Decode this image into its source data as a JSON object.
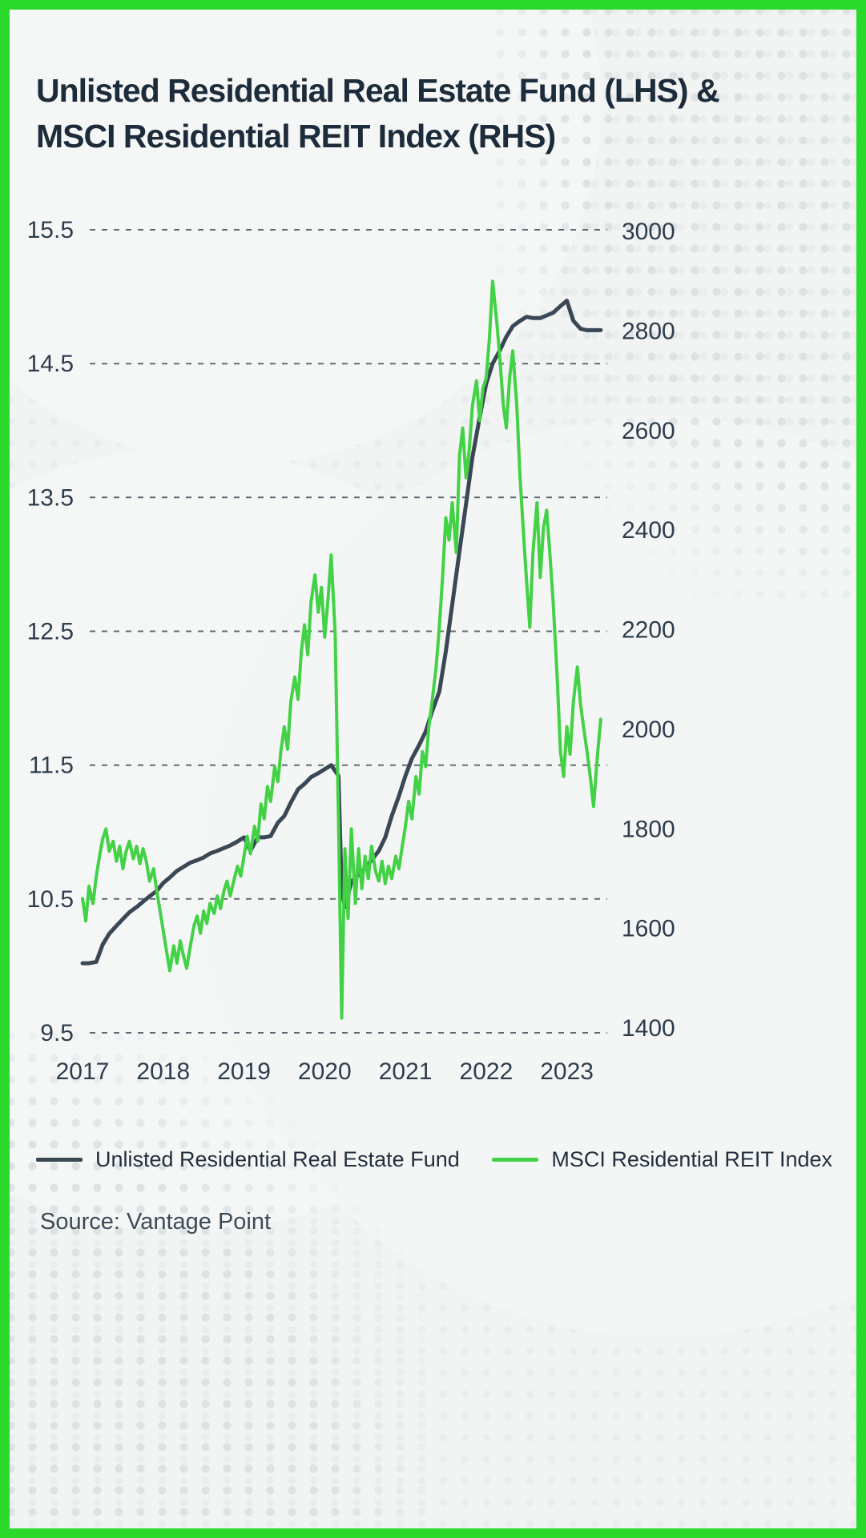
{
  "page": {
    "title_line1": "Unlisted Residential Real Estate Fund (LHS) &",
    "title_line2": "MSCI Residential REIT Index (RHS)",
    "source": "Source: Vantage Point"
  },
  "legend": {
    "items": [
      {
        "label": "Unlisted Residential Real Estate Fund",
        "color": "#3a4754"
      },
      {
        "label": "MSCI Residential REIT Index",
        "color": "#43d146"
      }
    ]
  },
  "colors": {
    "frame_green": "#2bd92b",
    "line_dark": "#3a4754",
    "line_green": "#43d146",
    "grid": "#46535e",
    "axis_text": "#2e3d4c"
  },
  "chart_data": {
    "type": "line",
    "title": "Unlisted Residential Real Estate Fund (LHS) & MSCI Residential REIT Index (RHS)",
    "grid": "dashed-horizontal",
    "legend_position": "bottom",
    "x_axis": {
      "min": 2016.95,
      "max": 2023.5,
      "tick_values": [
        2017,
        2018,
        2019,
        2020,
        2021,
        2022,
        2023
      ],
      "tick_labels": [
        "2017",
        "2018",
        "2019",
        "2020",
        "2021",
        "2022",
        "2023"
      ]
    },
    "left_axis": {
      "min": 9.5,
      "max": 15.5,
      "ticks": [
        15.5,
        14.5,
        13.5,
        12.5,
        11.5,
        10.5,
        9.5
      ]
    },
    "right_axis": {
      "min": 1400,
      "max": 3000,
      "ticks": [
        3000,
        2800,
        2600,
        2400,
        2200,
        2000,
        1800,
        1600,
        1400
      ]
    },
    "series": [
      {
        "id": "unlisted-fund",
        "name": "Unlisted Residential Real Estate Fund",
        "axis": "left",
        "color": "#3a4754",
        "points": [
          [
            2017.0,
            10.02
          ],
          [
            2017.08,
            10.02
          ],
          [
            2017.17,
            10.03
          ],
          [
            2017.25,
            10.16
          ],
          [
            2017.33,
            10.24
          ],
          [
            2017.42,
            10.3
          ],
          [
            2017.5,
            10.35
          ],
          [
            2017.58,
            10.4
          ],
          [
            2017.67,
            10.44
          ],
          [
            2017.75,
            10.48
          ],
          [
            2017.83,
            10.52
          ],
          [
            2017.92,
            10.56
          ],
          [
            2018.0,
            10.62
          ],
          [
            2018.08,
            10.66
          ],
          [
            2018.17,
            10.71
          ],
          [
            2018.25,
            10.74
          ],
          [
            2018.33,
            10.77
          ],
          [
            2018.42,
            10.79
          ],
          [
            2018.5,
            10.81
          ],
          [
            2018.58,
            10.84
          ],
          [
            2018.67,
            10.86
          ],
          [
            2018.75,
            10.88
          ],
          [
            2018.83,
            10.9
          ],
          [
            2018.92,
            10.93
          ],
          [
            2019.0,
            10.96
          ],
          [
            2019.08,
            10.86
          ],
          [
            2019.17,
            10.96
          ],
          [
            2019.25,
            10.96
          ],
          [
            2019.33,
            10.97
          ],
          [
            2019.42,
            11.07
          ],
          [
            2019.5,
            11.12
          ],
          [
            2019.58,
            11.22
          ],
          [
            2019.67,
            11.32
          ],
          [
            2019.75,
            11.36
          ],
          [
            2019.83,
            11.41
          ],
          [
            2019.92,
            11.44
          ],
          [
            2020.0,
            11.47
          ],
          [
            2020.08,
            11.5
          ],
          [
            2020.17,
            11.42
          ],
          [
            2020.21,
            10.56
          ],
          [
            2020.25,
            10.44
          ],
          [
            2020.33,
            10.63
          ],
          [
            2020.42,
            10.68
          ],
          [
            2020.5,
            10.73
          ],
          [
            2020.58,
            10.79
          ],
          [
            2020.67,
            10.86
          ],
          [
            2020.75,
            10.96
          ],
          [
            2020.83,
            11.12
          ],
          [
            2020.92,
            11.27
          ],
          [
            2021.0,
            11.42
          ],
          [
            2021.08,
            11.55
          ],
          [
            2021.17,
            11.65
          ],
          [
            2021.25,
            11.75
          ],
          [
            2021.33,
            11.9
          ],
          [
            2021.42,
            12.05
          ],
          [
            2021.5,
            12.35
          ],
          [
            2021.58,
            12.7
          ],
          [
            2021.67,
            13.1
          ],
          [
            2021.75,
            13.45
          ],
          [
            2021.83,
            13.8
          ],
          [
            2021.92,
            14.1
          ],
          [
            2022.0,
            14.35
          ],
          [
            2022.08,
            14.5
          ],
          [
            2022.17,
            14.6
          ],
          [
            2022.25,
            14.7
          ],
          [
            2022.33,
            14.78
          ],
          [
            2022.42,
            14.82
          ],
          [
            2022.5,
            14.85
          ],
          [
            2022.58,
            14.84
          ],
          [
            2022.67,
            14.84
          ],
          [
            2022.75,
            14.86
          ],
          [
            2022.83,
            14.88
          ],
          [
            2022.92,
            14.93
          ],
          [
            2023.0,
            14.97
          ],
          [
            2023.08,
            14.82
          ],
          [
            2023.17,
            14.76
          ],
          [
            2023.25,
            14.75
          ],
          [
            2023.33,
            14.75
          ],
          [
            2023.42,
            14.75
          ]
        ]
      },
      {
        "id": "msci-reit",
        "name": "MSCI Residential REIT Index",
        "axis": "right",
        "color": "#43d146",
        "points": [
          [
            2017.0,
            1660
          ],
          [
            2017.04,
            1615
          ],
          [
            2017.08,
            1685
          ],
          [
            2017.13,
            1650
          ],
          [
            2017.17,
            1705
          ],
          [
            2017.21,
            1745
          ],
          [
            2017.25,
            1780
          ],
          [
            2017.29,
            1800
          ],
          [
            2017.33,
            1755
          ],
          [
            2017.38,
            1775
          ],
          [
            2017.42,
            1735
          ],
          [
            2017.46,
            1765
          ],
          [
            2017.5,
            1720
          ],
          [
            2017.54,
            1755
          ],
          [
            2017.58,
            1775
          ],
          [
            2017.63,
            1740
          ],
          [
            2017.67,
            1765
          ],
          [
            2017.71,
            1730
          ],
          [
            2017.75,
            1760
          ],
          [
            2017.79,
            1735
          ],
          [
            2017.83,
            1695
          ],
          [
            2017.88,
            1720
          ],
          [
            2017.92,
            1675
          ],
          [
            2017.96,
            1635
          ],
          [
            2018.0,
            1595
          ],
          [
            2018.04,
            1555
          ],
          [
            2018.08,
            1515
          ],
          [
            2018.13,
            1565
          ],
          [
            2018.17,
            1530
          ],
          [
            2018.21,
            1575
          ],
          [
            2018.25,
            1545
          ],
          [
            2018.29,
            1520
          ],
          [
            2018.33,
            1560
          ],
          [
            2018.38,
            1605
          ],
          [
            2018.42,
            1625
          ],
          [
            2018.46,
            1590
          ],
          [
            2018.5,
            1635
          ],
          [
            2018.54,
            1610
          ],
          [
            2018.58,
            1650
          ],
          [
            2018.63,
            1630
          ],
          [
            2018.67,
            1665
          ],
          [
            2018.71,
            1640
          ],
          [
            2018.75,
            1675
          ],
          [
            2018.79,
            1695
          ],
          [
            2018.83,
            1665
          ],
          [
            2018.88,
            1700
          ],
          [
            2018.92,
            1725
          ],
          [
            2018.96,
            1705
          ],
          [
            2019.0,
            1745
          ],
          [
            2019.04,
            1785
          ],
          [
            2019.08,
            1750
          ],
          [
            2019.13,
            1805
          ],
          [
            2019.17,
            1775
          ],
          [
            2019.21,
            1850
          ],
          [
            2019.25,
            1820
          ],
          [
            2019.29,
            1885
          ],
          [
            2019.33,
            1855
          ],
          [
            2019.38,
            1925
          ],
          [
            2019.42,
            1895
          ],
          [
            2019.46,
            1960
          ],
          [
            2019.5,
            2005
          ],
          [
            2019.54,
            1960
          ],
          [
            2019.58,
            2055
          ],
          [
            2019.63,
            2105
          ],
          [
            2019.67,
            2060
          ],
          [
            2019.71,
            2155
          ],
          [
            2019.75,
            2210
          ],
          [
            2019.79,
            2150
          ],
          [
            2019.83,
            2255
          ],
          [
            2019.88,
            2310
          ],
          [
            2019.92,
            2235
          ],
          [
            2019.96,
            2285
          ],
          [
            2020.0,
            2185
          ],
          [
            2020.04,
            2260
          ],
          [
            2020.08,
            2350
          ],
          [
            2020.13,
            2190
          ],
          [
            2020.17,
            1820
          ],
          [
            2020.21,
            1420
          ],
          [
            2020.25,
            1760
          ],
          [
            2020.29,
            1620
          ],
          [
            2020.33,
            1800
          ],
          [
            2020.38,
            1650
          ],
          [
            2020.42,
            1760
          ],
          [
            2020.46,
            1680
          ],
          [
            2020.5,
            1745
          ],
          [
            2020.54,
            1700
          ],
          [
            2020.58,
            1765
          ],
          [
            2020.63,
            1715
          ],
          [
            2020.67,
            1695
          ],
          [
            2020.71,
            1735
          ],
          [
            2020.75,
            1690
          ],
          [
            2020.79,
            1725
          ],
          [
            2020.83,
            1700
          ],
          [
            2020.88,
            1745
          ],
          [
            2020.92,
            1720
          ],
          [
            2020.96,
            1765
          ],
          [
            2021.0,
            1805
          ],
          [
            2021.04,
            1855
          ],
          [
            2021.08,
            1820
          ],
          [
            2021.13,
            1905
          ],
          [
            2021.17,
            1870
          ],
          [
            2021.21,
            1955
          ],
          [
            2021.25,
            1925
          ],
          [
            2021.29,
            2005
          ],
          [
            2021.33,
            2055
          ],
          [
            2021.38,
            2125
          ],
          [
            2021.42,
            2205
          ],
          [
            2021.46,
            2305
          ],
          [
            2021.5,
            2425
          ],
          [
            2021.54,
            2380
          ],
          [
            2021.58,
            2455
          ],
          [
            2021.63,
            2355
          ],
          [
            2021.67,
            2550
          ],
          [
            2021.71,
            2605
          ],
          [
            2021.75,
            2505
          ],
          [
            2021.79,
            2560
          ],
          [
            2021.83,
            2650
          ],
          [
            2021.88,
            2700
          ],
          [
            2021.92,
            2620
          ],
          [
            2021.96,
            2685
          ],
          [
            2022.0,
            2705
          ],
          [
            2022.04,
            2785
          ],
          [
            2022.08,
            2900
          ],
          [
            2022.13,
            2820
          ],
          [
            2022.17,
            2745
          ],
          [
            2022.21,
            2655
          ],
          [
            2022.25,
            2605
          ],
          [
            2022.29,
            2705
          ],
          [
            2022.33,
            2760
          ],
          [
            2022.38,
            2650
          ],
          [
            2022.42,
            2505
          ],
          [
            2022.46,
            2400
          ],
          [
            2022.5,
            2300
          ],
          [
            2022.54,
            2205
          ],
          [
            2022.58,
            2355
          ],
          [
            2022.63,
            2455
          ],
          [
            2022.67,
            2305
          ],
          [
            2022.71,
            2405
          ],
          [
            2022.75,
            2440
          ],
          [
            2022.79,
            2350
          ],
          [
            2022.83,
            2255
          ],
          [
            2022.88,
            2105
          ],
          [
            2022.92,
            1955
          ],
          [
            2022.96,
            1905
          ],
          [
            2023.0,
            2005
          ],
          [
            2023.04,
            1950
          ],
          [
            2023.08,
            2055
          ],
          [
            2023.13,
            2125
          ],
          [
            2023.17,
            2050
          ],
          [
            2023.21,
            2000
          ],
          [
            2023.25,
            1955
          ],
          [
            2023.29,
            1905
          ],
          [
            2023.33,
            1845
          ],
          [
            2023.38,
            1950
          ],
          [
            2023.42,
            2020
          ]
        ]
      }
    ]
  }
}
